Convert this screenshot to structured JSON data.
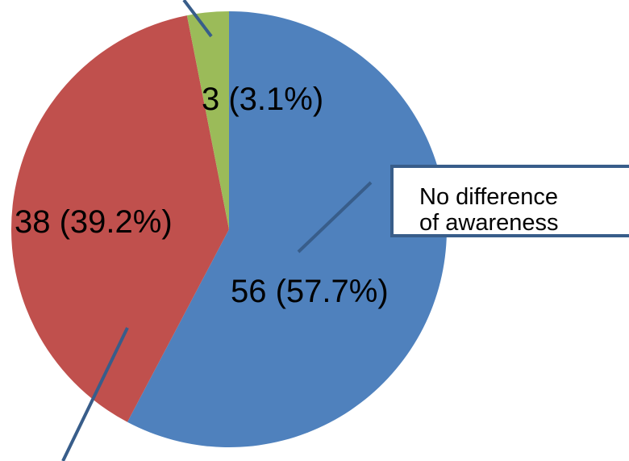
{
  "chart_data": {
    "type": "pie",
    "slices": [
      {
        "value": 56,
        "percent": 57.7,
        "label": "56 (57.7%)",
        "color": "#4F81BD"
      },
      {
        "value": 38,
        "percent": 39.2,
        "label": "38 (39.2%)",
        "color": "#C0504D"
      },
      {
        "value": 3,
        "percent": 3.1,
        "label": "3 (3.1%)",
        "color": "#9BBB59"
      }
    ],
    "start_angle_deg": 0,
    "direction": "clockwise",
    "callout": {
      "line1": "No difference",
      "line2": "of awareness"
    }
  },
  "colors": {
    "leader": "#385D8A",
    "callout_border": "#385D8A"
  }
}
